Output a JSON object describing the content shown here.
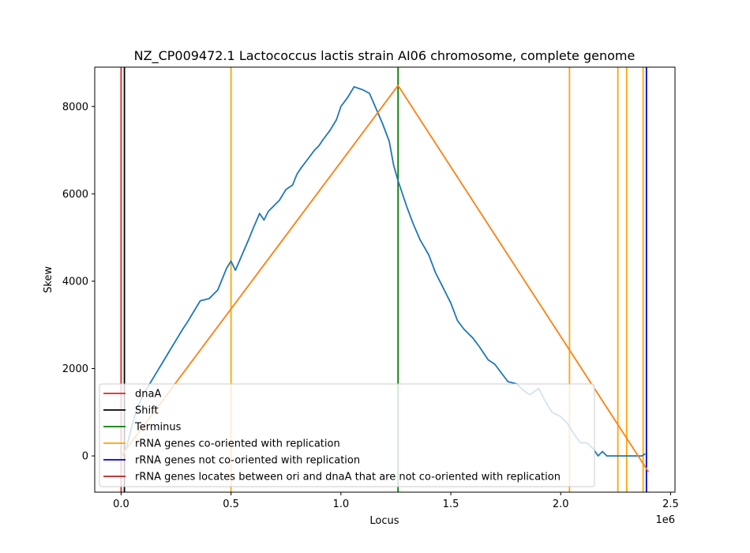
{
  "chart_data": {
    "type": "line",
    "title": "NZ_CP009472.1 Lactococcus lactis strain AI06 chromosome, complete genome",
    "xlabel": "Locus",
    "ylabel": "Skew",
    "x_offset_label": "1e6",
    "xlim": [
      -0.12,
      2.52
    ],
    "ylim": [
      -830,
      8900
    ],
    "x_ticks": [
      0,
      0.5,
      1.0,
      1.5,
      2.0,
      2.5
    ],
    "x_tick_labels": [
      "0.0",
      "0.5",
      "1.0",
      "1.5",
      "2.0",
      "2.5"
    ],
    "y_ticks": [
      0,
      2000,
      4000,
      6000,
      8000
    ],
    "y_tick_labels": [
      "0",
      "2000",
      "4000",
      "6000",
      "8000"
    ],
    "grid": false,
    "legend_position": "lower-left",
    "colors": {
      "skew": "#1f77b4",
      "fit": "#ff7f0e",
      "dnaA": "#d62728",
      "shift": "#000000",
      "terminus": "#008000",
      "rrna_co": "#ffa500",
      "rrna_not_co": "#0000cd",
      "rrna_between": "#b22222"
    },
    "series": [
      {
        "name": "skew",
        "x": [
          0.01,
          0.03,
          0.05,
          0.07,
          0.1,
          0.13,
          0.16,
          0.19,
          0.22,
          0.25,
          0.28,
          0.3,
          0.33,
          0.36,
          0.4,
          0.44,
          0.48,
          0.5,
          0.52,
          0.55,
          0.58,
          0.6,
          0.63,
          0.65,
          0.67,
          0.69,
          0.7,
          0.72,
          0.75,
          0.78,
          0.8,
          0.82,
          0.85,
          0.88,
          0.9,
          0.92,
          0.95,
          0.98,
          1.0,
          1.03,
          1.06,
          1.1,
          1.13,
          1.16,
          1.19,
          1.22,
          1.24,
          1.26,
          1.28,
          1.3,
          1.33,
          1.36,
          1.4,
          1.43,
          1.46,
          1.5,
          1.53,
          1.56,
          1.6,
          1.63,
          1.67,
          1.7,
          1.73,
          1.76,
          1.8,
          1.83,
          1.86,
          1.9,
          1.93,
          1.96,
          2.0,
          2.03,
          2.06,
          2.09,
          2.12,
          2.15,
          2.17,
          2.19,
          2.21,
          2.23,
          2.25,
          2.27,
          2.29,
          2.31,
          2.33,
          2.35,
          2.37,
          2.385
        ],
        "y": [
          0,
          300,
          700,
          1050,
          1400,
          1650,
          1900,
          2150,
          2400,
          2650,
          2900,
          3050,
          3300,
          3550,
          3600,
          3800,
          4300,
          4460,
          4250,
          4600,
          4950,
          5200,
          5550,
          5400,
          5600,
          5700,
          5750,
          5850,
          6100,
          6200,
          6450,
          6600,
          6800,
          7000,
          7100,
          7250,
          7450,
          7700,
          8000,
          8200,
          8450,
          8380,
          8300,
          7950,
          7600,
          7200,
          6650,
          6300,
          6000,
          5700,
          5300,
          4950,
          4600,
          4200,
          3900,
          3500,
          3100,
          2900,
          2700,
          2500,
          2200,
          2100,
          1900,
          1700,
          1650,
          1500,
          1400,
          1550,
          1250,
          1000,
          900,
          750,
          500,
          300,
          300,
          150,
          0,
          100,
          0,
          0,
          0,
          0,
          0,
          0,
          0,
          0,
          0,
          50
        ]
      },
      {
        "name": "fit",
        "x": [
          0.0,
          1.26,
          2.4
        ],
        "y": [
          0,
          8480,
          -370
        ]
      }
    ],
    "vertical_lines": [
      {
        "x": 0.0,
        "label": "dnaA"
      },
      {
        "x": 0.015,
        "label": "Shift"
      },
      {
        "x": 1.26,
        "label": "Terminus"
      },
      {
        "x": 0.5,
        "label": "rRNA genes co-oriented with replication"
      },
      {
        "x": 2.04,
        "label": "rRNA genes co-oriented with replication"
      },
      {
        "x": 2.26,
        "label": "rRNA genes co-oriented with replication"
      },
      {
        "x": 2.3,
        "label": "rRNA genes co-oriented with replication"
      },
      {
        "x": 2.375,
        "label": "rRNA genes co-oriented with replication"
      },
      {
        "x": 2.39,
        "label": "rRNA genes not co-oriented with replication"
      }
    ],
    "legend": [
      {
        "label": "dnaA",
        "color_key": "dnaA"
      },
      {
        "label": "Shift",
        "color_key": "shift"
      },
      {
        "label": "Terminus",
        "color_key": "terminus"
      },
      {
        "label": "rRNA genes co-oriented with replication",
        "color_key": "rrna_co"
      },
      {
        "label": "rRNA genes not co-oriented with replication",
        "color_key": "rrna_not_co"
      },
      {
        "label": "rRNA genes locates between ori and dnaA that are not co-oriented with replication",
        "color_key": "rrna_between"
      }
    ]
  }
}
